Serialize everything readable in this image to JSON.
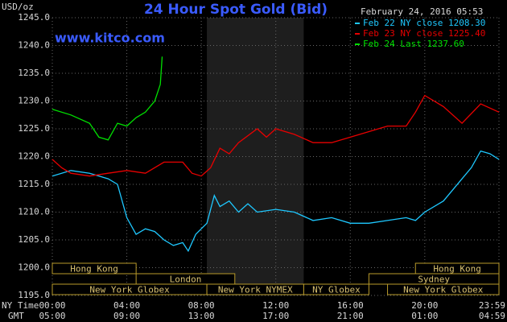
{
  "chart_data": {
    "type": "line",
    "title": "24 Hour Spot Gold (Bid)",
    "y_unit": "USD/oz",
    "site": "www.kitco.com",
    "timestamp": "February 24, 2016 05:53",
    "x_row_label": "NY Time",
    "x2_row_label": "GMT",
    "xlim": [
      0,
      23.983
    ],
    "xticks": [
      {
        "value": 0,
        "label": "00:00"
      },
      {
        "value": 4,
        "label": "04:00"
      },
      {
        "value": 8,
        "label": "08:00"
      },
      {
        "value": 12,
        "label": "12:00"
      },
      {
        "value": 16,
        "label": "16:00"
      },
      {
        "value": 20,
        "label": "20:00"
      },
      {
        "value": 23.983,
        "label": "23:59"
      }
    ],
    "x2_labels": [
      "05:00",
      "09:00",
      "13:00",
      "17:00",
      "21:00",
      "01:00",
      "04:59"
    ],
    "ylim": [
      1195,
      1245
    ],
    "yticks": [
      {
        "value": 1195,
        "label": "1195.0"
      },
      {
        "value": 1200,
        "label": "1200.0"
      },
      {
        "value": 1205,
        "label": "1205.0"
      },
      {
        "value": 1210,
        "label": "1210.0"
      },
      {
        "value": 1215,
        "label": "1215.0"
      },
      {
        "value": 1220,
        "label": "1220.0"
      },
      {
        "value": 1225,
        "label": "1225.0"
      },
      {
        "value": 1230,
        "label": "1230.0"
      },
      {
        "value": 1235,
        "label": "1235.0"
      },
      {
        "value": 1240,
        "label": "1240.0"
      },
      {
        "value": 1245,
        "label": "1245.0"
      }
    ],
    "grid": true,
    "highlight_hours": [
      8.3,
      13.5
    ],
    "session_rows": [
      [
        {
          "name": "Hong Kong",
          "start": 0,
          "end": 4.5
        },
        {
          "name": "Hong Kong",
          "start": 19.5,
          "end": 23.983
        }
      ],
      [
        {
          "name": "London",
          "start": 4.5,
          "end": 9.8
        },
        {
          "name": "Sydney",
          "start": 17,
          "end": 23.983
        }
      ],
      [
        {
          "name": "New York Globex",
          "start": 0,
          "end": 8.3
        },
        {
          "name": "New York NYMEX",
          "start": 8.3,
          "end": 13.5
        },
        {
          "name": "NY Globex",
          "start": 13.5,
          "end": 17
        },
        {
          "name": "New York Globex",
          "start": 18,
          "end": 23.983
        }
      ]
    ],
    "series": [
      {
        "name": "Feb 22 NY close 1208.30",
        "color": "#1ec8ff",
        "x": [
          0,
          1,
          2,
          3,
          3.5,
          4,
          4.5,
          5,
          5.5,
          6,
          6.5,
          7,
          7.3,
          7.7,
          8,
          8.3,
          8.7,
          9,
          9.5,
          10,
          10.5,
          11,
          12,
          13,
          14,
          15,
          16,
          17,
          18,
          19,
          19.5,
          20,
          21,
          22,
          22.5,
          23,
          23.5,
          23.983
        ],
        "values": [
          1216.5,
          1217.5,
          1217,
          1216,
          1215,
          1209,
          1206,
          1207,
          1206.5,
          1205,
          1204,
          1204.5,
          1203,
          1206,
          1207,
          1208,
          1213,
          1211,
          1212,
          1210,
          1211.5,
          1210,
          1210.5,
          1210,
          1208.5,
          1209,
          1208,
          1208,
          1208.5,
          1209,
          1208.5,
          1210,
          1212,
          1216,
          1218,
          1221,
          1220.5,
          1219.5
        ]
      },
      {
        "name": "Feb 23 NY close 1225.40",
        "color": "#e80000",
        "x": [
          0,
          0.5,
          1,
          2,
          3,
          4,
          5,
          6,
          7,
          7.5,
          8,
          8.5,
          9,
          9.5,
          10,
          11,
          11.5,
          12,
          13,
          14,
          15,
          16,
          17,
          18,
          19,
          19.5,
          20,
          21,
          22,
          23,
          23.983
        ],
        "values": [
          1219.5,
          1218,
          1217,
          1216.5,
          1217,
          1217.5,
          1217,
          1219,
          1219,
          1217,
          1216.5,
          1218,
          1221.5,
          1220.5,
          1222.5,
          1225,
          1223.5,
          1225,
          1224,
          1222.5,
          1222.5,
          1223.5,
          1224.5,
          1225.5,
          1225.5,
          1228,
          1231,
          1229,
          1226,
          1229.5,
          1228
        ]
      },
      {
        "name": "Feb 24 Last 1237.60",
        "color": "#00e000",
        "x": [
          0,
          1,
          2,
          2.5,
          3,
          3.5,
          4,
          4.5,
          5,
          5.5,
          5.8,
          5.9
        ],
        "values": [
          1228.5,
          1227.5,
          1226,
          1223.5,
          1223,
          1226,
          1225.5,
          1227,
          1228,
          1230,
          1233,
          1238
        ]
      }
    ]
  }
}
